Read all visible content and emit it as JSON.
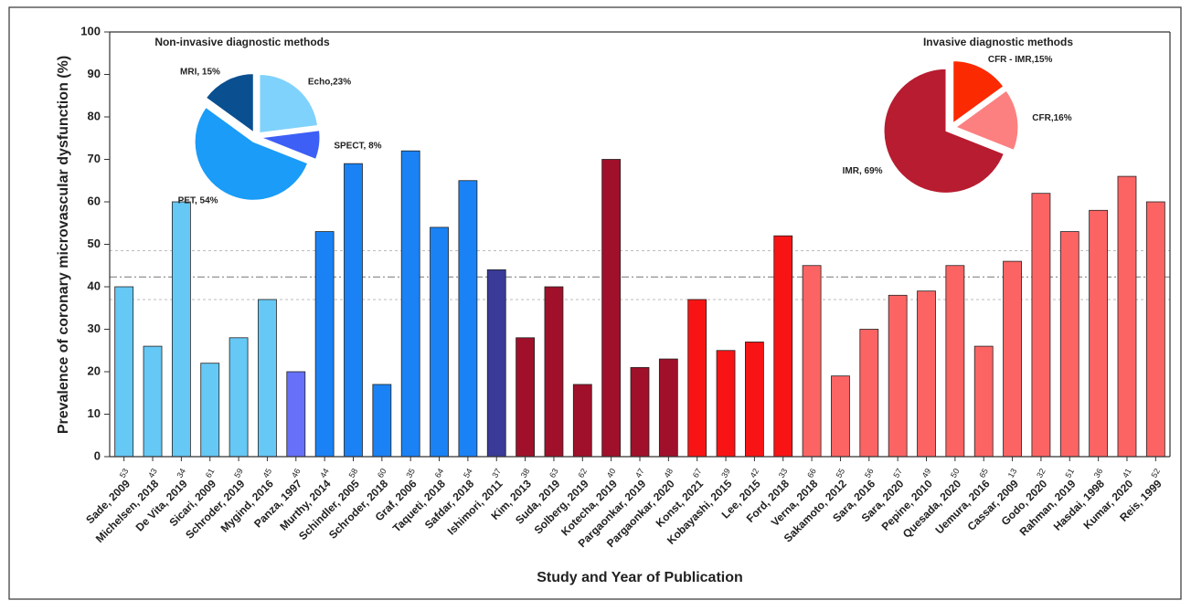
{
  "chart_data": [
    {
      "type": "bar",
      "x_label": "Study and Year of Publication",
      "y_label": "Prevalence of coronary microvascular dysfunction (%)",
      "categories": [
        "Sade, 2009",
        "Michelsen, 2018",
        "De Vita, 2019",
        "Sicari, 2009",
        "Schroder, 2019",
        "Mygind, 2016",
        "Panza, 1997",
        "Murthy, 2014",
        "Schindler, 2005",
        "Schroder, 2018",
        "Graf, 2006",
        "Taqueti, 2018",
        "Safdar, 2018",
        "Ishimori, 2011",
        "Kim, 2013",
        "Suda, 2019",
        "Solberg, 2019",
        "Kotecha, 2019",
        "Pargaonkar, 2019",
        "Pargaonkar, 2020",
        "Konst, 2021",
        "Kobayashi, 2015",
        "Lee, 2015",
        "Ford, 2018",
        "Verna, 2018",
        "Sakamoto, 2012",
        "Sara, 2016",
        "Sara, 2020",
        "Pepine, 2010",
        "Quesada, 2020",
        "Uemura, 2016",
        "Cassar, 2009",
        "Godo, 2020",
        "Rahman, 2019",
        "Hasdai, 1998",
        "Kumar, 2020",
        "Reis, 1999"
      ],
      "values": [
        40,
        26,
        60,
        22,
        28,
        37,
        20,
        53,
        69,
        17,
        72,
        54,
        65,
        44,
        28,
        40,
        17,
        70,
        21,
        23,
        37,
        25,
        27,
        52,
        45,
        19,
        30,
        38,
        39,
        45,
        26,
        46,
        62,
        53,
        58,
        66,
        60
      ],
      "references": [
        53,
        43,
        34,
        61,
        59,
        45,
        46,
        44,
        58,
        60,
        35,
        64,
        54,
        37,
        38,
        63,
        62,
        40,
        47,
        48,
        67,
        39,
        42,
        33,
        66,
        55,
        56,
        57,
        49,
        50,
        65,
        13,
        32,
        51,
        36,
        41,
        52
      ],
      "colors": [
        "#66c8f4",
        "#66c8f4",
        "#66c8f4",
        "#66c8f4",
        "#66c8f4",
        "#66c8f4",
        "#6670f8",
        "#1a82f5",
        "#1a82f5",
        "#1a82f5",
        "#1a82f5",
        "#1a82f5",
        "#1a82f5",
        "#3a3a98",
        "#a0102a",
        "#a0102a",
        "#a0102a",
        "#a0102a",
        "#a0102a",
        "#a0102a",
        "#f81414",
        "#f81414",
        "#f81414",
        "#f81414",
        "#fc6464",
        "#fc6464",
        "#fc6464",
        "#fc6464",
        "#fc6464",
        "#fc6464",
        "#fc6464",
        "#fc6464",
        "#fc6464",
        "#fc6464",
        "#fc6464",
        "#fc6464",
        "#fc6464"
      ],
      "ylim": [
        0,
        100
      ],
      "yticks": [
        0,
        10,
        20,
        30,
        40,
        50,
        60,
        70,
        80,
        90,
        100
      ],
      "reference_lines": [
        {
          "value": 42.3,
          "style": "dashdot"
        },
        {
          "value": 48.5,
          "style": "dotted"
        },
        {
          "value": 37,
          "style": "dotted"
        }
      ]
    },
    {
      "type": "pie",
      "title": "Non-invasive diagnostic methods",
      "categories": [
        "Echo",
        "SPECT",
        "PET",
        "MRI"
      ],
      "values": [
        23,
        8,
        54,
        15
      ],
      "value_labels": [
        "Echo,23%",
        "SPECT, 8%",
        "PET, 54%",
        "MRI, 15%"
      ],
      "colors": [
        "#7fd2fc",
        "#3d5ff5",
        "#1a9cf8",
        "#0a4f90"
      ]
    },
    {
      "type": "pie",
      "title": "Invasive diagnostic methods",
      "categories": [
        "CFR - IMR",
        "CFR",
        "IMR"
      ],
      "values": [
        15,
        16,
        69
      ],
      "value_labels": [
        "CFR - IMR,15%",
        "CFR,16%",
        "IMR, 69%"
      ],
      "colors": [
        "#fc2a00",
        "#fc8080",
        "#b81c30"
      ]
    }
  ]
}
